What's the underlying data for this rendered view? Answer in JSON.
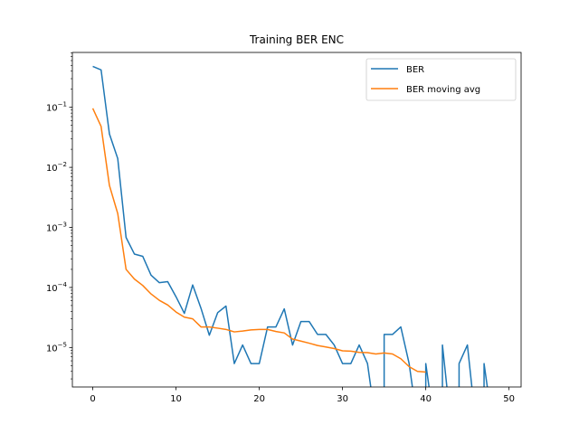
{
  "chart_data": {
    "type": "line",
    "title": "Training BER ENC",
    "xlabel": "",
    "ylabel": "",
    "xlim": [
      -2.45,
      51.45
    ],
    "ylim": [
      2.2e-06,
      0.82
    ],
    "yscale": "log",
    "x_ticks": [
      {
        "value": 0,
        "label": "0"
      },
      {
        "value": 10,
        "label": "10"
      },
      {
        "value": 20,
        "label": "20"
      },
      {
        "value": 30,
        "label": "30"
      },
      {
        "value": 40,
        "label": "40"
      },
      {
        "value": 50,
        "label": "50"
      }
    ],
    "y_ticks": [
      {
        "value": 1e-05,
        "base": "10",
        "exp": "−5"
      },
      {
        "value": 0.0001,
        "base": "10",
        "exp": "−4"
      },
      {
        "value": 0.001,
        "base": "10",
        "exp": "−3"
      },
      {
        "value": 0.01,
        "base": "10",
        "exp": "−2"
      },
      {
        "value": 0.1,
        "base": "10",
        "exp": "−1"
      }
    ],
    "legend_position": "upper right",
    "grid": false,
    "series": [
      {
        "name": "BER",
        "color": "#1f77b4",
        "x": [
          0,
          1,
          2,
          3,
          4,
          5,
          6,
          7,
          8,
          9,
          10,
          11,
          12,
          13,
          14,
          15,
          16,
          17,
          18,
          19,
          20,
          21,
          22,
          23,
          24,
          25,
          26,
          27,
          28,
          29,
          30,
          31,
          32,
          33,
          34,
          35,
          36,
          37,
          38,
          39,
          40,
          41,
          42,
          43,
          44,
          45,
          46,
          47,
          48,
          49
        ],
        "values": [
          0.48,
          0.42,
          0.036,
          0.014,
          0.00068,
          0.00036,
          0.00033,
          0.00016,
          0.00012,
          0.000125,
          7e-05,
          3.7e-05,
          0.00011,
          4.5e-05,
          1.6e-05,
          3.8e-05,
          4.9e-05,
          5.4e-06,
          1.1e-05,
          5.4e-06,
          5.4e-06,
          2.2e-05,
          2.2e-05,
          4.4e-05,
          1.1e-05,
          2.7e-05,
          2.7e-05,
          1.65e-05,
          1.65e-05,
          1.1e-05,
          5.4e-06,
          5.4e-06,
          1.1e-05,
          5.4e-06,
          null,
          1.65e-05,
          1.65e-05,
          2.2e-05,
          5.4e-06,
          null,
          5.4e-06,
          null,
          1.1e-05,
          null,
          5.4e-06,
          1.1e-05,
          null,
          5.4e-06,
          null,
          null
        ]
      },
      {
        "name": "BER moving avg",
        "color": "#ff7f0e",
        "x": [
          0,
          1,
          2,
          3,
          4,
          5,
          6,
          7,
          8,
          9,
          10,
          11,
          12,
          13,
          14,
          15,
          16,
          17,
          18,
          19,
          20,
          21,
          22,
          23,
          24,
          25,
          26,
          27,
          28,
          29,
          30,
          31,
          32,
          33,
          34,
          35,
          36,
          37,
          38,
          39,
          40
        ],
        "values": [
          0.096,
          0.048,
          0.005,
          0.0017,
          0.0002,
          0.000138,
          0.000108,
          7.8e-05,
          6.1e-05,
          5.1e-05,
          3.9e-05,
          3.2e-05,
          3e-05,
          2.2e-05,
          2.2e-05,
          2.1e-05,
          2e-05,
          1.82e-05,
          1.88e-05,
          1.96e-05,
          2e-05,
          2e-05,
          1.85e-05,
          1.75e-05,
          1.38e-05,
          1.28e-05,
          1.18e-05,
          1.08e-05,
          1.02e-05,
          9.6e-06,
          8.8e-06,
          8.7e-06,
          8.3e-06,
          8.2e-06,
          7.8e-06,
          8.1e-06,
          7.8e-06,
          6.5e-06,
          4.8e-06,
          4e-06,
          3.9e-06
        ]
      }
    ]
  }
}
